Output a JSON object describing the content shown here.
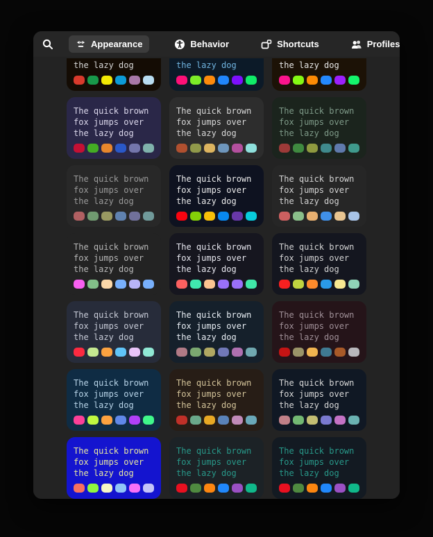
{
  "header": {
    "search_icon": "magnifying-glass",
    "tabs": [
      {
        "label": "Appearance",
        "icon": "appearance-icon",
        "selected": true
      },
      {
        "label": "Behavior",
        "icon": "accessibility-icon",
        "selected": false
      },
      {
        "label": "Shortcuts",
        "icon": "windows-tiles-icon",
        "selected": false
      },
      {
        "label": "Profiles",
        "icon": "people-icon",
        "selected": false
      }
    ],
    "close_icon": "x-in-circle"
  },
  "preview": {
    "line1": "The quick brown",
    "line2": "fox jumps over",
    "line3": "the lazy dog"
  },
  "colors": {
    "window_bg": "#232323",
    "header_bg": "#262626",
    "selected_tab_bg": "#3c3c3c",
    "close_button_bg": "#383838"
  },
  "themes": [
    {
      "partial": true,
      "bg": "#140c04",
      "fg": "#d8d8d8",
      "colors": [
        "#d83a2c",
        "#18994a",
        "#f4ea04",
        "#0c9ad6",
        "#a878a8",
        "#b8dcf0"
      ]
    },
    {
      "partial": true,
      "bg": "#0c1a28",
      "fg": "#70b4e0",
      "colors": [
        "#fc1078",
        "#7cec28",
        "#fc8a0c",
        "#2086fc",
        "#7c10fc",
        "#10ec68"
      ]
    },
    {
      "partial": true,
      "bg": "#1c1206",
      "fg": "#e8e8e8",
      "colors": [
        "#fc148c",
        "#84f814",
        "#fc8a04",
        "#2488fc",
        "#9c20fc",
        "#14f46c"
      ]
    },
    {
      "partial": false,
      "bg": "#2a2748",
      "fg": "#dcd8ec",
      "colors": [
        "#c41034",
        "#44ac24",
        "#e8862c",
        "#2a58c8",
        "#7476ac",
        "#80b2ac"
      ]
    },
    {
      "partial": false,
      "bg": "#2d2d2d",
      "fg": "#d9d9d9",
      "colors": [
        "#b0502f",
        "#90994a",
        "#dcb45f",
        "#6e96bc",
        "#b4509e",
        "#8fe0dc"
      ]
    },
    {
      "partial": false,
      "bg": "#1b241d",
      "fg": "#7e9a88",
      "colors": [
        "#9c3a38",
        "#3f8a40",
        "#8f9a3f",
        "#3f8a8c",
        "#5f7aac",
        "#3f9a8c"
      ]
    },
    {
      "partial": false,
      "bg": "#282828",
      "fg": "#9a9a9a",
      "colors": [
        "#b06062",
        "#709a70",
        "#9a9a62",
        "#6082b0",
        "#70709a",
        "#709a9a"
      ]
    },
    {
      "partial": false,
      "bg": "#0e1220",
      "fg": "#ececec",
      "colors": [
        "#f80410",
        "#84d008",
        "#f8c008",
        "#0888f0",
        "#6838a8",
        "#08ccdc"
      ]
    },
    {
      "partial": false,
      "bg": "#262626",
      "fg": "#d4d4d4",
      "colors": [
        "#cc6060",
        "#8abf8a",
        "#e8b070",
        "#4090e8",
        "#e8c490",
        "#a8c4e8"
      ]
    },
    {
      "partial": false,
      "bg": "#232323",
      "fg": "#b8b8b8",
      "colors": [
        "#f860f0",
        "#82c088",
        "#fcd8a8",
        "#78b0fc",
        "#b8b4f8",
        "#78b0fc"
      ]
    },
    {
      "partial": false,
      "bg": "#16161f",
      "fg": "#e8e8f0",
      "colors": [
        "#fc6060",
        "#40e8b0",
        "#fcc490",
        "#9a70f8",
        "#9a70f8",
        "#40e8a8"
      ]
    },
    {
      "partial": false,
      "bg": "#14161f",
      "fg": "#d4d4d4",
      "colors": [
        "#f82020",
        "#c0d440",
        "#fc8a2c",
        "#2a9ae8",
        "#f8e890",
        "#90d4b8"
      ]
    },
    {
      "partial": false,
      "bg": "#272c3a",
      "fg": "#c8ccd8",
      "colors": [
        "#fc2a40",
        "#c4e890",
        "#fca240",
        "#60c4f8",
        "#e8c4f8",
        "#90e8d4"
      ]
    },
    {
      "partial": false,
      "bg": "#15202b",
      "fg": "#e8eef4",
      "colors": [
        "#b07a86",
        "#7aa870",
        "#b0a862",
        "#7078b8",
        "#b070b0",
        "#70a8b0"
      ]
    },
    {
      "partial": false,
      "bg": "#251419",
      "fg": "#a09098",
      "colors": [
        "#c41414",
        "#9a9468",
        "#f0b450",
        "#3f7a92",
        "#a85a28",
        "#b8b8bc"
      ]
    },
    {
      "partial": false,
      "bg": "#0f2c44",
      "fg": "#b8d4e8",
      "colors": [
        "#fc4098",
        "#c0f840",
        "#fca240",
        "#6088e8",
        "#b040f8",
        "#40f88a"
      ]
    },
    {
      "partial": false,
      "bg": "#271d16",
      "fg": "#d4c49a",
      "colors": [
        "#c03028",
        "#6aa88a",
        "#e8a824",
        "#5a82b8",
        "#c08ab8",
        "#6aa8b8"
      ]
    },
    {
      "partial": false,
      "bg": "#101824",
      "fg": "#d8d8d8",
      "colors": [
        "#c08088",
        "#72b873",
        "#c2bd72",
        "#7a7ad0",
        "#c472c4",
        "#6ab2b2"
      ]
    },
    {
      "partial": false,
      "bg": "#1414cf",
      "fg": "#e8e8a0",
      "colors": [
        "#f8705f",
        "#90f840",
        "#f8f8c4",
        "#90c4f8",
        "#f870f8",
        "#c4c4f8"
      ]
    },
    {
      "partial": false,
      "bg": "#1c2226",
      "fg": "#28998a",
      "colors": [
        "#e81020",
        "#4f8a40",
        "#fc8610",
        "#2088fc",
        "#9a50c4",
        "#10b88a"
      ]
    },
    {
      "partial": false,
      "bg": "#131a22",
      "fg": "#28998a",
      "colors": [
        "#e81020",
        "#4f8a40",
        "#fc8610",
        "#2088fc",
        "#9a50c4",
        "#10b88a"
      ]
    }
  ]
}
